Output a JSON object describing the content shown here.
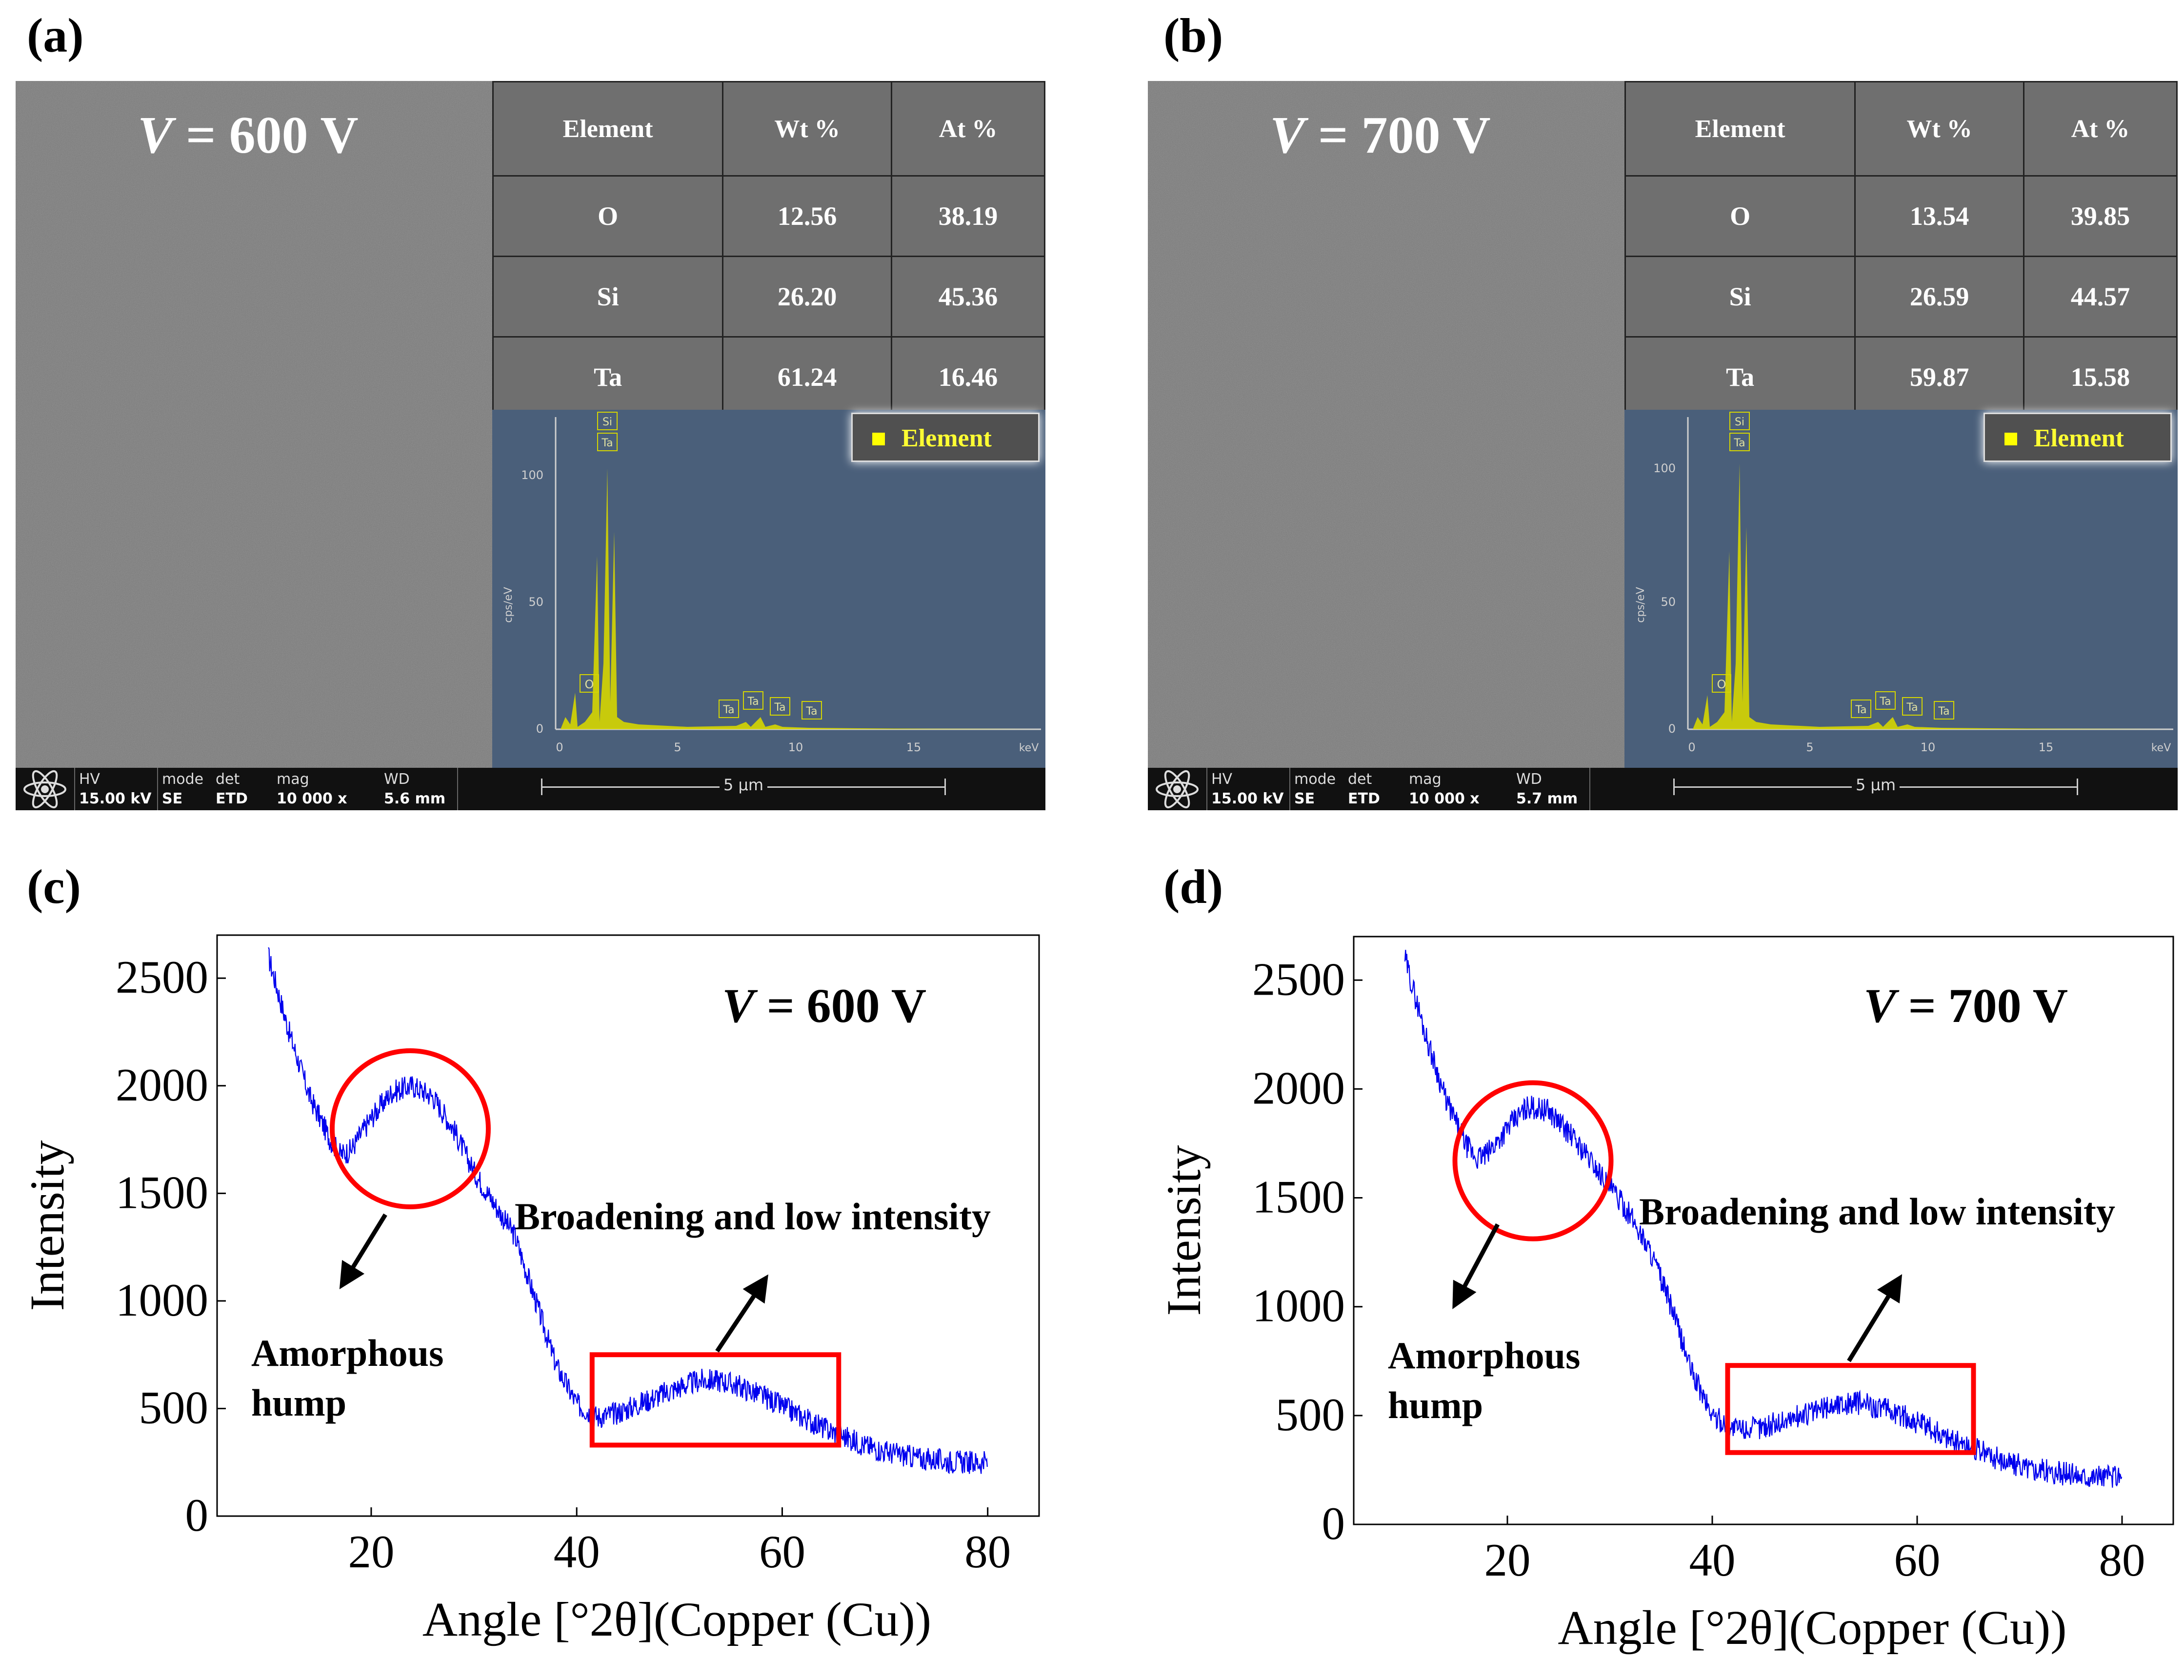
{
  "panels": {
    "a": {
      "label": "(a)",
      "voltage_symbol": "V",
      "voltage_text": " = 600 V"
    },
    "b": {
      "label": "(b)",
      "voltage_symbol": "V",
      "voltage_text": " = 700 V"
    },
    "c": {
      "label": "(c)"
    },
    "d": {
      "label": "(d)"
    }
  },
  "eds_tables": [
    {
      "headers": [
        "Element",
        "Wt %",
        "At %"
      ],
      "rows": [
        [
          "O",
          "12.56",
          "38.19"
        ],
        [
          "Si",
          "26.20",
          "45.36"
        ],
        [
          "Ta",
          "61.24",
          "16.46"
        ]
      ]
    },
    {
      "headers": [
        "Element",
        "Wt %",
        "At %"
      ],
      "rows": [
        [
          "O",
          "13.54",
          "39.85"
        ],
        [
          "Si",
          "26.59",
          "44.57"
        ],
        [
          "Ta",
          "59.87",
          "15.58"
        ]
      ]
    }
  ],
  "spectrum": {
    "legend": "Element",
    "y_unit": "cps/eV",
    "x_unit": "keV",
    "y_ticks": [
      "0",
      "50",
      "100"
    ],
    "x_ticks": [
      "0",
      "5",
      "10",
      "15"
    ],
    "peak_labels_top": [
      "Si",
      "Ta"
    ],
    "peak_labels_low": [
      "O",
      "Ta",
      "Ta",
      "Ta",
      "Ta"
    ],
    "colors": {
      "background": "#4a5f7a",
      "peaks": "#d6d600"
    }
  },
  "databars": [
    {
      "hv_label": "HV",
      "hv_value": "15.00 kV",
      "mode_label": "mode",
      "mode_value": "SE",
      "det_label": "det",
      "det_value": "ETD",
      "mag_label": "mag",
      "mag_value": "10 000 x",
      "wd_label": "WD",
      "wd_value": "5.6 mm",
      "scale": "5 µm"
    },
    {
      "hv_label": "HV",
      "hv_value": "15.00 kV",
      "mode_label": "mode",
      "mode_value": "SE",
      "det_label": "det",
      "det_value": "ETD",
      "mag_label": "mag",
      "mag_value": "10 000 x",
      "wd_label": "WD",
      "wd_value": "5.7 mm",
      "scale": "5 µm"
    }
  ],
  "chart_data": [
    {
      "type": "line",
      "panel": "(c)",
      "annotation_voltage": "V = 600 V",
      "xlabel": "Angle  [°2θ](Copper (Cu))",
      "ylabel": "Intensity",
      "xlim": [
        5,
        85
      ],
      "ylim": [
        0,
        2700
      ],
      "x_ticks": [
        20,
        40,
        60,
        80
      ],
      "y_ticks": [
        0,
        500,
        1000,
        1500,
        2000,
        2500
      ],
      "series": [
        {
          "x": [
            10,
            12,
            14,
            16,
            17,
            18,
            20,
            22,
            24,
            26,
            28,
            30,
            32,
            34,
            36,
            38,
            40,
            42,
            44,
            46,
            48,
            50,
            52,
            54,
            56,
            58,
            60,
            62,
            64,
            66,
            68,
            70,
            72,
            74,
            76,
            78,
            80
          ],
          "y": [
            2600,
            2250,
            1950,
            1750,
            1680,
            1700,
            1850,
            1970,
            2000,
            1950,
            1800,
            1600,
            1450,
            1300,
            1000,
            700,
            520,
            460,
            480,
            520,
            560,
            600,
            630,
            630,
            600,
            560,
            510,
            460,
            410,
            370,
            330,
            300,
            280,
            265,
            255,
            250,
            250
          ]
        }
      ],
      "color": "#0000ee",
      "annotations": [
        "Amorphous",
        "hump",
        "Broadening and low intensity"
      ]
    },
    {
      "type": "line",
      "panel": "(d)",
      "annotation_voltage": "V = 700 V",
      "xlabel": "Angle  [°2θ](Copper (Cu))",
      "ylabel": "Intensity",
      "xlim": [
        5,
        85
      ],
      "ylim": [
        0,
        2700
      ],
      "x_ticks": [
        20,
        40,
        60,
        80
      ],
      "y_ticks": [
        0,
        500,
        1000,
        1500,
        2000,
        2500
      ],
      "series": [
        {
          "x": [
            10,
            12,
            14,
            16,
            17,
            18,
            20,
            22,
            24,
            26,
            28,
            30,
            32,
            34,
            36,
            38,
            40,
            42,
            44,
            46,
            48,
            50,
            52,
            54,
            56,
            58,
            60,
            62,
            64,
            66,
            68,
            70,
            72,
            74,
            76,
            78,
            80
          ],
          "y": [
            2600,
            2250,
            1950,
            1740,
            1680,
            1700,
            1820,
            1920,
            1900,
            1800,
            1680,
            1550,
            1420,
            1250,
            1000,
            700,
            500,
            440,
            440,
            460,
            490,
            520,
            550,
            560,
            540,
            510,
            470,
            420,
            380,
            340,
            300,
            270,
            250,
            235,
            225,
            220,
            220
          ]
        }
      ],
      "color": "#0000ee",
      "annotations": [
        "Amorphous",
        "hump",
        "Broadening and low intensity"
      ]
    }
  ]
}
